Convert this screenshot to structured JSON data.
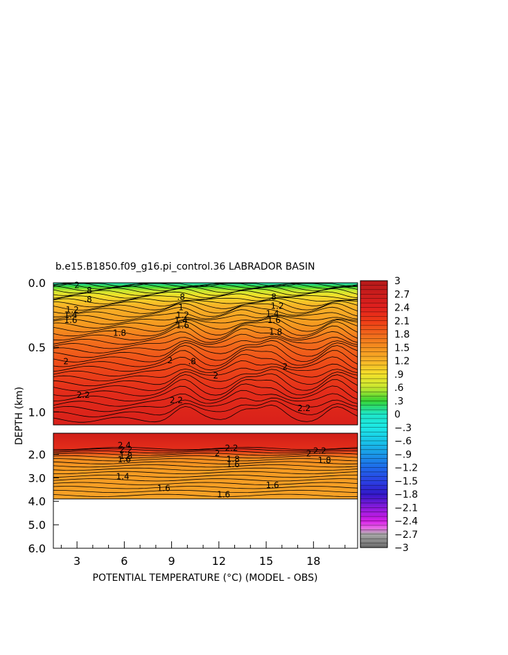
{
  "chart_data": {
    "type": "heatmap",
    "title": "b.e15.B1850.f09_g16.pi_control.36 LABRADOR BASIN",
    "xlabel": "POTENTIAL TEMPERATURE (°C) (MODEL - OBS)",
    "ylabel": "DEPTH (km)",
    "x_ticks": [
      "3",
      "6",
      "9",
      "12",
      "15",
      "18"
    ],
    "x_tick_values": [
      3,
      6,
      9,
      12,
      15,
      18
    ],
    "xlim": [
      1.5,
      20.8
    ],
    "upper_panel": {
      "ylim": [
        0.0,
        1.1
      ],
      "y_ticks": [
        "0.0",
        "0.5",
        "1.0"
      ],
      "y_tick_values": [
        0.0,
        0.5,
        1.0
      ]
    },
    "lower_panel": {
      "ylim": [
        1.1,
        6.0
      ],
      "y_ticks": [
        "2.0",
        "3.0",
        "4.0",
        "5.0",
        "6.0"
      ],
      "y_tick_values": [
        2.0,
        3.0,
        4.0,
        5.0,
        6.0
      ],
      "data_bottom_km": 3.9
    },
    "colorbar": {
      "labels": [
        "3",
        "2.7",
        "2.4",
        "2.1",
        "1.8",
        "1.5",
        "1.2",
        ".9",
        ".6",
        ".3",
        "0",
        "−.3",
        "−.6",
        "−.9",
        "−1.2",
        "−1.5",
        "−1.8",
        "−2.1",
        "−2.4",
        "−2.7",
        "−3"
      ],
      "vmin": -3,
      "vmax": 3
    },
    "contour_labels": [
      {
        "text": "2",
        "x": 3.0,
        "y": 0.02
      },
      {
        "text": ".8",
        "x": 3.7,
        "y": 0.06
      },
      {
        "text": ".8",
        "x": 3.7,
        "y": 0.13
      },
      {
        "text": "1.2",
        "x": 2.7,
        "y": 0.21
      },
      {
        "text": "1.4",
        "x": 2.6,
        "y": 0.25
      },
      {
        "text": "1.6",
        "x": 2.6,
        "y": 0.29
      },
      {
        "text": "1.8",
        "x": 5.7,
        "y": 0.39
      },
      {
        "text": "2",
        "x": 2.3,
        "y": 0.61
      },
      {
        "text": "2",
        "x": 8.9,
        "y": 0.6
      },
      {
        "text": "2",
        "x": 11.8,
        "y": 0.72
      },
      {
        "text": "2",
        "x": 16.2,
        "y": 0.65
      },
      {
        "text": "2.2",
        "x": 3.4,
        "y": 0.87
      },
      {
        "text": "2.2",
        "x": 9.3,
        "y": 0.91
      },
      {
        "text": ".8",
        "x": 10.3,
        "y": 0.61
      },
      {
        "text": ".8",
        "x": 9.6,
        "y": 0.11
      },
      {
        "text": "1",
        "x": 9.6,
        "y": 0.19
      },
      {
        "text": "1.2",
        "x": 9.7,
        "y": 0.25
      },
      {
        "text": "1.4",
        "x": 9.6,
        "y": 0.29
      },
      {
        "text": "1.6",
        "x": 9.7,
        "y": 0.33
      },
      {
        "text": "1.2",
        "x": 15.7,
        "y": 0.18
      },
      {
        "text": "1.4",
        "x": 15.4,
        "y": 0.24
      },
      {
        "text": "1.6",
        "x": 15.5,
        "y": 0.29
      },
      {
        "text": "1.8",
        "x": 15.6,
        "y": 0.38
      },
      {
        "text": ".8",
        "x": 15.4,
        "y": 0.11
      },
      {
        "text": "2.2",
        "x": 17.4,
        "y": 0.97
      },
      {
        "text": "2.4",
        "x": 6.0,
        "y": 1.62
      },
      {
        "text": "2.2",
        "x": 6.1,
        "y": 1.81
      },
      {
        "text": "1.8",
        "x": 6.1,
        "y": 2.08
      },
      {
        "text": "1.6",
        "x": 6.0,
        "y": 2.22
      },
      {
        "text": "1.4",
        "x": 5.9,
        "y": 2.95
      },
      {
        "text": "2.2",
        "x": 12.8,
        "y": 1.73
      },
      {
        "text": "2",
        "x": 11.9,
        "y": 1.96
      },
      {
        "text": "1.8",
        "x": 12.9,
        "y": 2.21
      },
      {
        "text": "1.6",
        "x": 12.9,
        "y": 2.43
      },
      {
        "text": "2.2",
        "x": 18.4,
        "y": 1.86
      },
      {
        "text": "2",
        "x": 17.7,
        "y": 1.97
      },
      {
        "text": "1.8",
        "x": 18.7,
        "y": 2.25
      },
      {
        "text": "1.6",
        "x": 8.5,
        "y": 3.45
      },
      {
        "text": "1.6",
        "x": 12.3,
        "y": 3.71
      },
      {
        "text": "1.6",
        "x": 15.4,
        "y": 3.31
      }
    ],
    "grid": false
  }
}
